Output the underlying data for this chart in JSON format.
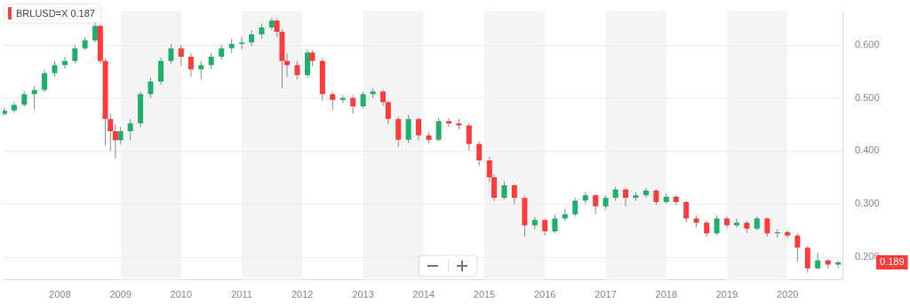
{
  "chart_data": {
    "type": "candlestick",
    "title": "BRLUSD=X 0.187",
    "xlim": [
      "2007-01-22",
      "2020-11-27"
    ],
    "xticks": [
      "2008",
      "2009",
      "2010",
      "2011",
      "2012",
      "2013",
      "2014",
      "2015",
      "2016",
      "2017",
      "2018",
      "2019",
      "2020"
    ],
    "ylim": [
      0.156,
      0.664
    ],
    "yticks": [
      {
        "value": 0.2,
        "label": "0.200"
      },
      {
        "value": 0.3,
        "label": "0.300"
      },
      {
        "value": 0.4,
        "label": "0.400"
      },
      {
        "value": 0.5,
        "label": "0.500"
      },
      {
        "value": 0.6,
        "label": "0.600"
      }
    ],
    "grid": "y",
    "bands": [
      {
        "axis": "x",
        "from": "2009",
        "to": "2010",
        "color": "#f4f4f4"
      },
      {
        "axis": "x",
        "from": "2011",
        "to": "2012",
        "color": "#f4f4f4"
      },
      {
        "axis": "x",
        "from": "2013",
        "to": "2014",
        "color": "#f4f4f4"
      },
      {
        "axis": "x",
        "from": "2015",
        "to": "2016",
        "color": "#f4f4f4"
      },
      {
        "axis": "x",
        "from": "2017",
        "to": "2018",
        "color": "#f4f4f4"
      },
      {
        "axis": "x",
        "from": "2019",
        "to": "2020",
        "color": "#f4f4f4"
      }
    ],
    "annotations": [
      "0.189"
    ],
    "series": [
      {
        "color": "#1db06a",
        "x": [
          "2007-02",
          "2007-04",
          "2007-06",
          "2007-08",
          "2007-10",
          "2007-12",
          "2008-02",
          "2008-04",
          "2008-06",
          "2008-08",
          "2009-01",
          "2009-03",
          "2009-05",
          "2009-07",
          "2009-09",
          "2009-11",
          "2010-05",
          "2010-07",
          "2010-09",
          "2010-11",
          "2011-01",
          "2011-03",
          "2011-05",
          "2011-07",
          "2012-02",
          "2012-09",
          "2013-01",
          "2013-03",
          "2013-10",
          "2014-04",
          "2015-05",
          "2015-11",
          "2016-03",
          "2016-05",
          "2016-07",
          "2016-09",
          "2017-01",
          "2017-03",
          "2017-07",
          "2017-09",
          "2018-01",
          "2018-11",
          "2019-03",
          "2019-07",
          "2019-11",
          "2020-07",
          "2020-11"
        ],
        "ohlc": [
          [
            0.47,
            0.482,
            0.466,
            0.476
          ],
          [
            0.476,
            0.493,
            0.472,
            0.487
          ],
          [
            0.487,
            0.513,
            0.483,
            0.507
          ],
          [
            0.507,
            0.522,
            0.478,
            0.515
          ],
          [
            0.515,
            0.553,
            0.511,
            0.547
          ],
          [
            0.547,
            0.57,
            0.54,
            0.562
          ],
          [
            0.562,
            0.578,
            0.555,
            0.57
          ],
          [
            0.57,
            0.6,
            0.565,
            0.594
          ],
          [
            0.594,
            0.615,
            0.59,
            0.609
          ],
          [
            0.609,
            0.642,
            0.605,
            0.636
          ],
          [
            0.42,
            0.445,
            0.412,
            0.437
          ],
          [
            0.437,
            0.46,
            0.42,
            0.452
          ],
          [
            0.452,
            0.512,
            0.445,
            0.507
          ],
          [
            0.507,
            0.538,
            0.5,
            0.531
          ],
          [
            0.531,
            0.576,
            0.525,
            0.57
          ],
          [
            0.57,
            0.602,
            0.565,
            0.594
          ],
          [
            0.554,
            0.57,
            0.535,
            0.562
          ],
          [
            0.562,
            0.585,
            0.555,
            0.578
          ],
          [
            0.578,
            0.6,
            0.572,
            0.594
          ],
          [
            0.594,
            0.612,
            0.585,
            0.602
          ],
          [
            0.602,
            0.615,
            0.592,
            0.605
          ],
          [
            0.605,
            0.628,
            0.598,
            0.62
          ],
          [
            0.62,
            0.64,
            0.612,
            0.633
          ],
          [
            0.633,
            0.652,
            0.628,
            0.646
          ],
          [
            0.543,
            0.592,
            0.538,
            0.586
          ],
          [
            0.496,
            0.505,
            0.49,
            0.5
          ],
          [
            0.484,
            0.512,
            0.48,
            0.507
          ],
          [
            0.507,
            0.518,
            0.5,
            0.512
          ],
          [
            0.421,
            0.468,
            0.415,
            0.46
          ],
          [
            0.421,
            0.462,
            0.418,
            0.456
          ],
          [
            0.311,
            0.342,
            0.308,
            0.335
          ],
          [
            0.259,
            0.275,
            0.252,
            0.269
          ],
          [
            0.248,
            0.28,
            0.245,
            0.272
          ],
          [
            0.272,
            0.29,
            0.268,
            0.28
          ],
          [
            0.28,
            0.312,
            0.276,
            0.306
          ],
          [
            0.306,
            0.322,
            0.3,
            0.316
          ],
          [
            0.295,
            0.316,
            0.29,
            0.311
          ],
          [
            0.311,
            0.332,
            0.306,
            0.327
          ],
          [
            0.311,
            0.322,
            0.305,
            0.316
          ],
          [
            0.316,
            0.33,
            0.312,
            0.325
          ],
          [
            0.303,
            0.32,
            0.3,
            0.313
          ],
          [
            0.244,
            0.278,
            0.24,
            0.272
          ],
          [
            0.259,
            0.272,
            0.255,
            0.264
          ],
          [
            0.253,
            0.276,
            0.25,
            0.272
          ],
          [
            0.244,
            0.252,
            0.236,
            0.246
          ],
          [
            0.178,
            0.208,
            0.175,
            0.193
          ],
          [
            0.185,
            0.192,
            0.178,
            0.189
          ]
        ]
      },
      {
        "color": "#ff3b3b",
        "x": [
          "2008-09",
          "2008-10",
          "2008-11",
          "2008-12",
          "2010-01",
          "2010-03",
          "2011-08",
          "2011-09",
          "2011-10",
          "2011-12",
          "2012-03",
          "2012-05",
          "2012-07",
          "2012-11",
          "2013-05",
          "2013-06",
          "2013-08",
          "2013-12",
          "2014-02",
          "2014-06",
          "2014-08",
          "2014-10",
          "2014-12",
          "2015-02",
          "2015-03",
          "2015-07",
          "2015-09",
          "2016-01",
          "2016-11",
          "2017-05",
          "2017-11",
          "2018-03",
          "2018-05",
          "2018-07",
          "2018-09",
          "2019-01",
          "2019-05",
          "2019-09",
          "2020-01",
          "2020-03",
          "2020-05",
          "2020-09"
        ],
        "ohlc": [
          [
            0.636,
            0.638,
            0.565,
            0.57
          ],
          [
            0.57,
            0.575,
            0.41,
            0.46
          ],
          [
            0.46,
            0.47,
            0.4,
            0.437
          ],
          [
            0.437,
            0.45,
            0.386,
            0.42
          ],
          [
            0.594,
            0.6,
            0.56,
            0.578
          ],
          [
            0.578,
            0.585,
            0.54,
            0.554
          ],
          [
            0.646,
            0.65,
            0.615,
            0.625
          ],
          [
            0.625,
            0.63,
            0.518,
            0.57
          ],
          [
            0.57,
            0.585,
            0.54,
            0.562
          ],
          [
            0.562,
            0.57,
            0.535,
            0.543
          ],
          [
            0.586,
            0.59,
            0.56,
            0.57
          ],
          [
            0.57,
            0.575,
            0.495,
            0.507
          ],
          [
            0.507,
            0.512,
            0.478,
            0.496
          ],
          [
            0.5,
            0.505,
            0.47,
            0.484
          ],
          [
            0.512,
            0.515,
            0.485,
            0.492
          ],
          [
            0.492,
            0.495,
            0.45,
            0.46
          ],
          [
            0.46,
            0.465,
            0.408,
            0.421
          ],
          [
            0.46,
            0.462,
            0.42,
            0.429
          ],
          [
            0.429,
            0.435,
            0.414,
            0.421
          ],
          [
            0.456,
            0.462,
            0.445,
            0.452
          ],
          [
            0.452,
            0.46,
            0.44,
            0.448
          ],
          [
            0.448,
            0.452,
            0.4,
            0.413
          ],
          [
            0.413,
            0.418,
            0.372,
            0.382
          ],
          [
            0.382,
            0.388,
            0.34,
            0.35
          ],
          [
            0.35,
            0.355,
            0.305,
            0.311
          ],
          [
            0.335,
            0.338,
            0.3,
            0.311
          ],
          [
            0.311,
            0.315,
            0.238,
            0.259
          ],
          [
            0.269,
            0.272,
            0.24,
            0.248
          ],
          [
            0.316,
            0.318,
            0.28,
            0.295
          ],
          [
            0.327,
            0.33,
            0.295,
            0.311
          ],
          [
            0.325,
            0.328,
            0.298,
            0.303
          ],
          [
            0.313,
            0.316,
            0.298,
            0.303
          ],
          [
            0.303,
            0.306,
            0.265,
            0.272
          ],
          [
            0.272,
            0.278,
            0.255,
            0.264
          ],
          [
            0.264,
            0.268,
            0.237,
            0.244
          ],
          [
            0.272,
            0.276,
            0.254,
            0.259
          ],
          [
            0.264,
            0.268,
            0.245,
            0.253
          ],
          [
            0.272,
            0.274,
            0.238,
            0.244
          ],
          [
            0.246,
            0.25,
            0.235,
            0.24
          ],
          [
            0.24,
            0.244,
            0.19,
            0.217
          ],
          [
            0.217,
            0.22,
            0.17,
            0.178
          ],
          [
            0.193,
            0.196,
            0.178,
            0.185
          ]
        ]
      }
    ]
  }
}
